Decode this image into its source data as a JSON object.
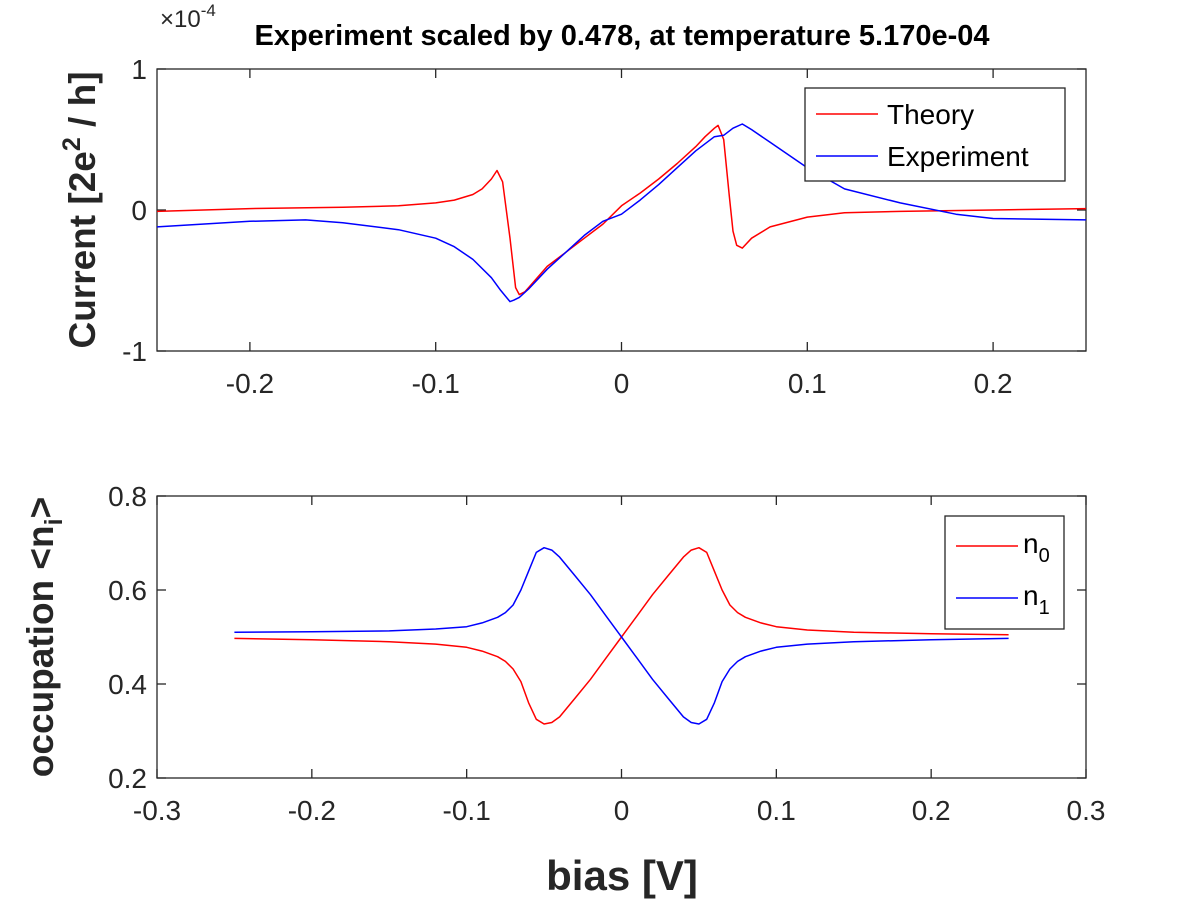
{
  "colors": {
    "theory": "#ff0000",
    "experiment": "#0000ff",
    "axis": "#262626",
    "background": "#ffffff"
  },
  "chart_data": [
    {
      "type": "line",
      "title": "Experiment scaled by 0.478, at temperature 5.170e-04",
      "exponent_label": "×10",
      "exponent_power": "-4",
      "ylabel_main": "Current [2e",
      "ylabel_sup": "2",
      "ylabel_end": " / h]",
      "xlabel": "",
      "xlim": [
        -0.25,
        0.25
      ],
      "ylim": [
        -1,
        1
      ],
      "xticks": [
        -0.2,
        -0.1,
        0,
        0.1,
        0.2
      ],
      "xtick_labels": [
        "-0.2",
        "-0.1",
        "0",
        "0.1",
        "0.2"
      ],
      "yticks": [
        -1,
        0,
        1
      ],
      "ytick_labels": [
        "-1",
        "0",
        "1"
      ],
      "grid": false,
      "legend_position": "top-right",
      "series": [
        {
          "name": "Theory",
          "color": "#ff0000",
          "x": [
            -0.25,
            -0.2,
            -0.15,
            -0.12,
            -0.1,
            -0.09,
            -0.08,
            -0.075,
            -0.07,
            -0.067,
            -0.064,
            -0.06,
            -0.057,
            -0.055,
            -0.052,
            -0.05,
            -0.04,
            -0.03,
            -0.02,
            -0.01,
            0,
            0.01,
            0.02,
            0.03,
            0.04,
            0.045,
            0.05,
            0.052,
            0.055,
            0.058,
            0.06,
            0.062,
            0.065,
            0.07,
            0.08,
            0.1,
            0.12,
            0.15,
            0.2,
            0.25
          ],
          "y": [
            -0.01,
            0.01,
            0.02,
            0.03,
            0.05,
            0.07,
            0.11,
            0.15,
            0.22,
            0.28,
            0.2,
            -0.2,
            -0.55,
            -0.6,
            -0.58,
            -0.55,
            -0.4,
            -0.3,
            -0.2,
            -0.1,
            0.03,
            0.12,
            0.22,
            0.33,
            0.45,
            0.52,
            0.58,
            0.6,
            0.5,
            0.1,
            -0.15,
            -0.25,
            -0.27,
            -0.2,
            -0.12,
            -0.05,
            -0.02,
            -0.01,
            0.0,
            0.01
          ]
        },
        {
          "name": "Experiment",
          "color": "#0000ff",
          "x": [
            -0.25,
            -0.2,
            -0.17,
            -0.15,
            -0.12,
            -0.1,
            -0.09,
            -0.08,
            -0.07,
            -0.065,
            -0.06,
            -0.058,
            -0.055,
            -0.05,
            -0.04,
            -0.03,
            -0.02,
            -0.01,
            0,
            0.01,
            0.02,
            0.03,
            0.04,
            0.05,
            0.055,
            0.06,
            0.065,
            0.07,
            0.08,
            0.1,
            0.12,
            0.15,
            0.18,
            0.2,
            0.25
          ],
          "y": [
            -0.12,
            -0.08,
            -0.07,
            -0.09,
            -0.14,
            -0.2,
            -0.26,
            -0.35,
            -0.48,
            -0.57,
            -0.65,
            -0.64,
            -0.62,
            -0.56,
            -0.42,
            -0.3,
            -0.18,
            -0.08,
            -0.03,
            0.07,
            0.18,
            0.3,
            0.42,
            0.52,
            0.53,
            0.58,
            0.61,
            0.57,
            0.48,
            0.3,
            0.15,
            0.05,
            -0.03,
            -0.06,
            -0.07
          ]
        }
      ]
    },
    {
      "type": "line",
      "title": "",
      "xlabel": "bias [V]",
      "ylabel_main": "occupation <n",
      "ylabel_sub": "i",
      "ylabel_end": ">",
      "xlim": [
        -0.3,
        0.3
      ],
      "ylim": [
        0.2,
        0.8
      ],
      "xticks": [
        -0.3,
        -0.2,
        -0.1,
        0,
        0.1,
        0.2,
        0.3
      ],
      "xtick_labels": [
        "-0.3",
        "-0.2",
        "-0.1",
        "0",
        "0.1",
        "0.2",
        "0.3"
      ],
      "yticks": [
        0.2,
        0.4,
        0.6,
        0.8
      ],
      "ytick_labels": [
        "0.2",
        "0.4",
        "0.6",
        "0.8"
      ],
      "grid": false,
      "legend_position": "top-right",
      "series": [
        {
          "name_base": "n",
          "name_sub": "0",
          "color": "#ff0000",
          "x": [
            -0.25,
            -0.2,
            -0.15,
            -0.12,
            -0.1,
            -0.09,
            -0.08,
            -0.075,
            -0.07,
            -0.065,
            -0.06,
            -0.055,
            -0.05,
            -0.045,
            -0.04,
            -0.03,
            -0.02,
            -0.01,
            0,
            0.01,
            0.02,
            0.03,
            0.04,
            0.045,
            0.05,
            0.055,
            0.06,
            0.065,
            0.07,
            0.075,
            0.08,
            0.09,
            0.1,
            0.12,
            0.15,
            0.2,
            0.25
          ],
          "y": [
            0.497,
            0.494,
            0.49,
            0.485,
            0.478,
            0.47,
            0.458,
            0.448,
            0.432,
            0.405,
            0.36,
            0.325,
            0.315,
            0.318,
            0.33,
            0.37,
            0.41,
            0.455,
            0.5,
            0.545,
            0.59,
            0.63,
            0.67,
            0.685,
            0.69,
            0.68,
            0.64,
            0.6,
            0.568,
            0.552,
            0.542,
            0.53,
            0.522,
            0.515,
            0.51,
            0.507,
            0.505
          ]
        },
        {
          "name_base": "n",
          "name_sub": "1",
          "color": "#0000ff",
          "x": [
            -0.25,
            -0.2,
            -0.15,
            -0.12,
            -0.1,
            -0.09,
            -0.08,
            -0.075,
            -0.07,
            -0.065,
            -0.06,
            -0.055,
            -0.05,
            -0.045,
            -0.04,
            -0.03,
            -0.02,
            -0.01,
            0,
            0.01,
            0.02,
            0.03,
            0.04,
            0.045,
            0.05,
            0.055,
            0.06,
            0.065,
            0.07,
            0.075,
            0.08,
            0.09,
            0.1,
            0.12,
            0.15,
            0.2,
            0.25
          ],
          "y": [
            0.51,
            0.511,
            0.513,
            0.517,
            0.522,
            0.53,
            0.542,
            0.552,
            0.568,
            0.6,
            0.64,
            0.68,
            0.69,
            0.685,
            0.67,
            0.63,
            0.59,
            0.545,
            0.5,
            0.455,
            0.41,
            0.37,
            0.33,
            0.318,
            0.315,
            0.325,
            0.36,
            0.405,
            0.432,
            0.448,
            0.458,
            0.47,
            0.478,
            0.485,
            0.49,
            0.494,
            0.497
          ]
        }
      ]
    }
  ]
}
